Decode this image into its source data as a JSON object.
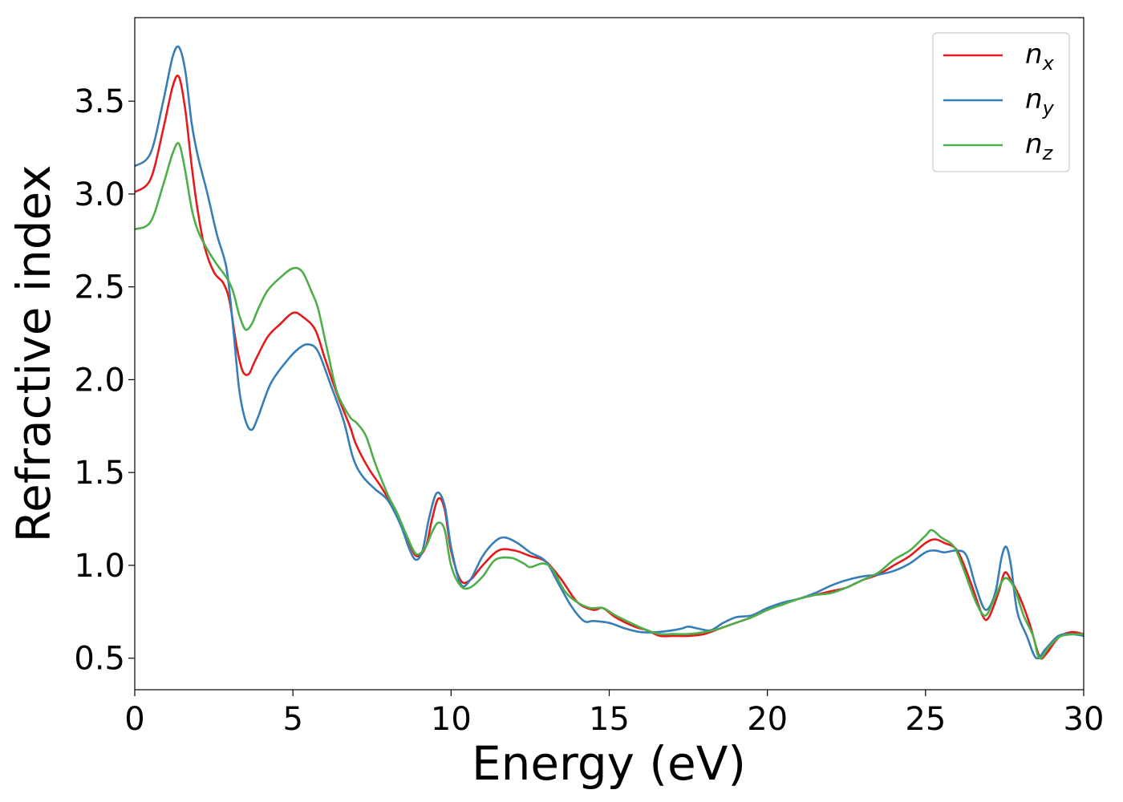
{
  "chart_data": {
    "type": "line",
    "title": "",
    "xlabel": "Energy (eV)",
    "ylabel": "Refractive index",
    "xlim": [
      0,
      30
    ],
    "ylim": [
      0.33,
      3.95
    ],
    "xticks": [
      0,
      5,
      10,
      15,
      20,
      25,
      30
    ],
    "yticks": [
      0.5,
      1.0,
      1.5,
      2.0,
      2.5,
      3.0,
      3.5
    ],
    "xtick_labels": [
      "0",
      "5",
      "10",
      "15",
      "20",
      "25",
      "30"
    ],
    "ytick_labels": [
      "0.5",
      "1.0",
      "1.5",
      "2.0",
      "2.5",
      "3.0",
      "3.5"
    ],
    "grid": false,
    "legend_position": "top-right",
    "legend": [
      {
        "base": "n",
        "sub": "x",
        "color": "#e41a1c"
      },
      {
        "base": "n",
        "sub": "y",
        "color": "#377eb8"
      },
      {
        "base": "n",
        "sub": "z",
        "color": "#4daf4a"
      }
    ],
    "series": [
      {
        "name": "nx",
        "color": "#e41a1c",
        "points": [
          [
            0,
            3.01
          ],
          [
            0.5,
            3.08
          ],
          [
            0.9,
            3.35
          ],
          [
            1.2,
            3.58
          ],
          [
            1.4,
            3.63
          ],
          [
            1.6,
            3.45
          ],
          [
            1.8,
            3.15
          ],
          [
            2.0,
            2.9
          ],
          [
            2.2,
            2.72
          ],
          [
            2.5,
            2.58
          ],
          [
            2.8,
            2.52
          ],
          [
            3.0,
            2.42
          ],
          [
            3.2,
            2.2
          ],
          [
            3.4,
            2.05
          ],
          [
            3.6,
            2.03
          ],
          [
            3.8,
            2.1
          ],
          [
            4.2,
            2.23
          ],
          [
            4.6,
            2.3
          ],
          [
            5.0,
            2.36
          ],
          [
            5.3,
            2.34
          ],
          [
            5.7,
            2.27
          ],
          [
            6.0,
            2.12
          ],
          [
            6.4,
            1.92
          ],
          [
            6.8,
            1.75
          ],
          [
            7.0,
            1.65
          ],
          [
            7.4,
            1.52
          ],
          [
            7.8,
            1.42
          ],
          [
            8.2,
            1.3
          ],
          [
            8.6,
            1.15
          ],
          [
            8.9,
            1.05
          ],
          [
            9.2,
            1.1
          ],
          [
            9.4,
            1.25
          ],
          [
            9.6,
            1.36
          ],
          [
            9.8,
            1.3
          ],
          [
            10.0,
            1.08
          ],
          [
            10.3,
            0.92
          ],
          [
            10.6,
            0.92
          ],
          [
            11.0,
            1.0
          ],
          [
            11.5,
            1.08
          ],
          [
            12.0,
            1.08
          ],
          [
            12.5,
            1.05
          ],
          [
            13.0,
            1.02
          ],
          [
            13.5,
            0.92
          ],
          [
            14.0,
            0.8
          ],
          [
            14.5,
            0.76
          ],
          [
            14.8,
            0.77
          ],
          [
            15.2,
            0.72
          ],
          [
            15.8,
            0.67
          ],
          [
            16.2,
            0.65
          ],
          [
            16.6,
            0.62
          ],
          [
            17.0,
            0.62
          ],
          [
            17.5,
            0.62
          ],
          [
            18.0,
            0.63
          ],
          [
            18.5,
            0.66
          ],
          [
            19.0,
            0.69
          ],
          [
            19.5,
            0.72
          ],
          [
            20.0,
            0.76
          ],
          [
            20.5,
            0.79
          ],
          [
            21.0,
            0.82
          ],
          [
            21.5,
            0.84
          ],
          [
            22.0,
            0.86
          ],
          [
            22.5,
            0.88
          ],
          [
            23.0,
            0.92
          ],
          [
            23.5,
            0.95
          ],
          [
            24.0,
            1.0
          ],
          [
            24.5,
            1.05
          ],
          [
            25.0,
            1.12
          ],
          [
            25.3,
            1.14
          ],
          [
            25.6,
            1.12
          ],
          [
            26.0,
            1.08
          ],
          [
            26.4,
            0.92
          ],
          [
            26.8,
            0.73
          ],
          [
            27.0,
            0.72
          ],
          [
            27.3,
            0.85
          ],
          [
            27.5,
            0.96
          ],
          [
            27.7,
            0.92
          ],
          [
            28.0,
            0.82
          ],
          [
            28.3,
            0.68
          ],
          [
            28.6,
            0.51
          ],
          [
            28.8,
            0.52
          ],
          [
            29.2,
            0.61
          ],
          [
            29.6,
            0.64
          ],
          [
            30,
            0.63
          ]
        ]
      },
      {
        "name": "ny",
        "color": "#377eb8",
        "points": [
          [
            0,
            3.15
          ],
          [
            0.5,
            3.22
          ],
          [
            0.9,
            3.5
          ],
          [
            1.2,
            3.74
          ],
          [
            1.4,
            3.79
          ],
          [
            1.6,
            3.66
          ],
          [
            1.8,
            3.38
          ],
          [
            2.0,
            3.2
          ],
          [
            2.3,
            3.0
          ],
          [
            2.6,
            2.78
          ],
          [
            2.9,
            2.6
          ],
          [
            3.1,
            2.3
          ],
          [
            3.3,
            1.95
          ],
          [
            3.5,
            1.78
          ],
          [
            3.7,
            1.73
          ],
          [
            3.9,
            1.8
          ],
          [
            4.3,
            1.98
          ],
          [
            4.8,
            2.1
          ],
          [
            5.2,
            2.17
          ],
          [
            5.5,
            2.19
          ],
          [
            5.8,
            2.15
          ],
          [
            6.2,
            1.97
          ],
          [
            6.6,
            1.78
          ],
          [
            6.9,
            1.58
          ],
          [
            7.2,
            1.48
          ],
          [
            7.6,
            1.41
          ],
          [
            8.0,
            1.35
          ],
          [
            8.4,
            1.22
          ],
          [
            8.7,
            1.08
          ],
          [
            8.9,
            1.03
          ],
          [
            9.1,
            1.08
          ],
          [
            9.3,
            1.25
          ],
          [
            9.55,
            1.39
          ],
          [
            9.8,
            1.32
          ],
          [
            10.0,
            1.1
          ],
          [
            10.3,
            0.9
          ],
          [
            10.6,
            0.92
          ],
          [
            11.0,
            1.05
          ],
          [
            11.4,
            1.13
          ],
          [
            11.7,
            1.15
          ],
          [
            12.1,
            1.12
          ],
          [
            12.5,
            1.07
          ],
          [
            13.0,
            1.02
          ],
          [
            13.4,
            0.9
          ],
          [
            13.8,
            0.78
          ],
          [
            14.2,
            0.7
          ],
          [
            14.5,
            0.7
          ],
          [
            15.0,
            0.69
          ],
          [
            15.5,
            0.66
          ],
          [
            16.0,
            0.64
          ],
          [
            16.5,
            0.64
          ],
          [
            17.0,
            0.65
          ],
          [
            17.3,
            0.66
          ],
          [
            17.5,
            0.67
          ],
          [
            17.8,
            0.66
          ],
          [
            18.2,
            0.65
          ],
          [
            18.6,
            0.69
          ],
          [
            19.0,
            0.72
          ],
          [
            19.5,
            0.73
          ],
          [
            20.0,
            0.77
          ],
          [
            20.5,
            0.8
          ],
          [
            21.0,
            0.82
          ],
          [
            21.5,
            0.85
          ],
          [
            22.0,
            0.89
          ],
          [
            22.5,
            0.92
          ],
          [
            23.0,
            0.94
          ],
          [
            23.5,
            0.95
          ],
          [
            24.0,
            0.97
          ],
          [
            24.5,
            1.01
          ],
          [
            25.0,
            1.07
          ],
          [
            25.3,
            1.08
          ],
          [
            25.6,
            1.07
          ],
          [
            26.0,
            1.08
          ],
          [
            26.3,
            1.05
          ],
          [
            26.6,
            0.88
          ],
          [
            26.9,
            0.76
          ],
          [
            27.2,
            0.85
          ],
          [
            27.4,
            1.04
          ],
          [
            27.55,
            1.1
          ],
          [
            27.7,
            1.0
          ],
          [
            27.9,
            0.75
          ],
          [
            28.2,
            0.62
          ],
          [
            28.5,
            0.5
          ],
          [
            28.8,
            0.55
          ],
          [
            29.2,
            0.62
          ],
          [
            29.6,
            0.63
          ],
          [
            30,
            0.62
          ]
        ]
      },
      {
        "name": "nz",
        "color": "#4daf4a",
        "points": [
          [
            0,
            2.81
          ],
          [
            0.5,
            2.85
          ],
          [
            0.9,
            3.05
          ],
          [
            1.2,
            3.22
          ],
          [
            1.4,
            3.27
          ],
          [
            1.6,
            3.12
          ],
          [
            1.8,
            2.92
          ],
          [
            2.0,
            2.8
          ],
          [
            2.3,
            2.7
          ],
          [
            2.6,
            2.62
          ],
          [
            2.9,
            2.55
          ],
          [
            3.1,
            2.48
          ],
          [
            3.3,
            2.35
          ],
          [
            3.5,
            2.27
          ],
          [
            3.7,
            2.3
          ],
          [
            3.9,
            2.38
          ],
          [
            4.2,
            2.48
          ],
          [
            4.6,
            2.55
          ],
          [
            5.0,
            2.6
          ],
          [
            5.3,
            2.58
          ],
          [
            5.6,
            2.47
          ],
          [
            5.8,
            2.38
          ],
          [
            6.1,
            2.15
          ],
          [
            6.4,
            1.93
          ],
          [
            6.8,
            1.8
          ],
          [
            7.0,
            1.77
          ],
          [
            7.3,
            1.7
          ],
          [
            7.6,
            1.55
          ],
          [
            8.0,
            1.38
          ],
          [
            8.3,
            1.28
          ],
          [
            8.6,
            1.16
          ],
          [
            8.9,
            1.06
          ],
          [
            9.2,
            1.1
          ],
          [
            9.4,
            1.18
          ],
          [
            9.6,
            1.23
          ],
          [
            9.8,
            1.19
          ],
          [
            10.0,
            1.0
          ],
          [
            10.3,
            0.89
          ],
          [
            10.6,
            0.88
          ],
          [
            11.0,
            0.94
          ],
          [
            11.4,
            1.03
          ],
          [
            11.9,
            1.04
          ],
          [
            12.3,
            1.01
          ],
          [
            12.5,
            0.99
          ],
          [
            12.9,
            1.01
          ],
          [
            13.2,
            0.98
          ],
          [
            13.6,
            0.86
          ],
          [
            14.0,
            0.8
          ],
          [
            14.4,
            0.77
          ],
          [
            14.8,
            0.77
          ],
          [
            15.2,
            0.73
          ],
          [
            15.8,
            0.68
          ],
          [
            16.2,
            0.65
          ],
          [
            16.6,
            0.63
          ],
          [
            17.0,
            0.63
          ],
          [
            17.5,
            0.63
          ],
          [
            18.0,
            0.64
          ],
          [
            18.5,
            0.66
          ],
          [
            19.0,
            0.69
          ],
          [
            19.5,
            0.72
          ],
          [
            20.0,
            0.76
          ],
          [
            20.5,
            0.79
          ],
          [
            21.0,
            0.82
          ],
          [
            21.5,
            0.84
          ],
          [
            22.0,
            0.85
          ],
          [
            22.5,
            0.88
          ],
          [
            23.0,
            0.92
          ],
          [
            23.5,
            0.96
          ],
          [
            24.0,
            1.03
          ],
          [
            24.5,
            1.08
          ],
          [
            25.0,
            1.16
          ],
          [
            25.2,
            1.19
          ],
          [
            25.5,
            1.15
          ],
          [
            25.9,
            1.1
          ],
          [
            26.2,
            0.98
          ],
          [
            26.6,
            0.8
          ],
          [
            26.9,
            0.73
          ],
          [
            27.2,
            0.83
          ],
          [
            27.5,
            0.93
          ],
          [
            27.8,
            0.88
          ],
          [
            28.1,
            0.73
          ],
          [
            28.4,
            0.62
          ],
          [
            28.6,
            0.5
          ],
          [
            28.9,
            0.56
          ],
          [
            29.3,
            0.62
          ],
          [
            30,
            0.63
          ]
        ]
      }
    ]
  }
}
